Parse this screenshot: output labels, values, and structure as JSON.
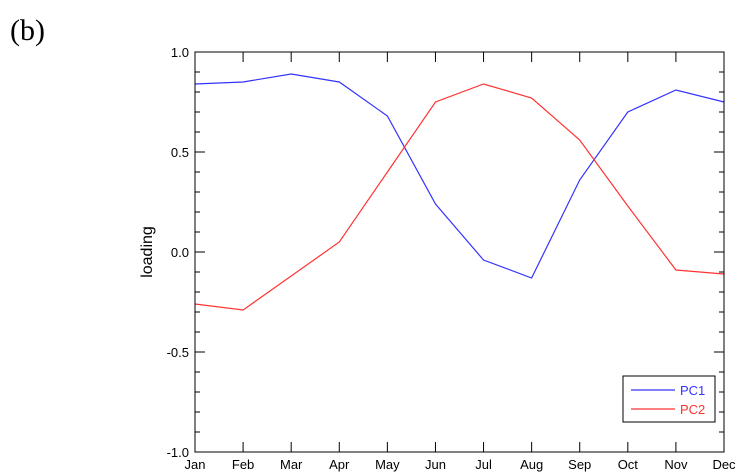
{
  "panel_label": "(b)",
  "chart_data": {
    "type": "line",
    "title": "",
    "xlabel": "",
    "ylabel": "loading",
    "categories": [
      "Jan",
      "Feb",
      "Mar",
      "Apr",
      "May",
      "Jun",
      "Jul",
      "Aug",
      "Sep",
      "Oct",
      "Nov",
      "Dec"
    ],
    "ylim": [
      -1.0,
      1.0
    ],
    "yticks": [
      -1.0,
      -0.5,
      0.0,
      0.5,
      1.0
    ],
    "ytick_labels": [
      "-1.0",
      "-0.5",
      "0.0",
      "0.5",
      "1.0"
    ],
    "grid": false,
    "legend_position": "bottom-right",
    "series": [
      {
        "name": "PC1",
        "color": "#3333ff",
        "values": [
          0.84,
          0.85,
          0.89,
          0.85,
          0.68,
          0.24,
          -0.04,
          -0.13,
          0.36,
          0.7,
          0.81,
          0.75
        ]
      },
      {
        "name": "PC2",
        "color": "#ff3333",
        "values": [
          -0.26,
          -0.29,
          -0.12,
          0.05,
          0.4,
          0.75,
          0.84,
          0.77,
          0.56,
          0.23,
          -0.09,
          -0.11
        ]
      }
    ]
  }
}
